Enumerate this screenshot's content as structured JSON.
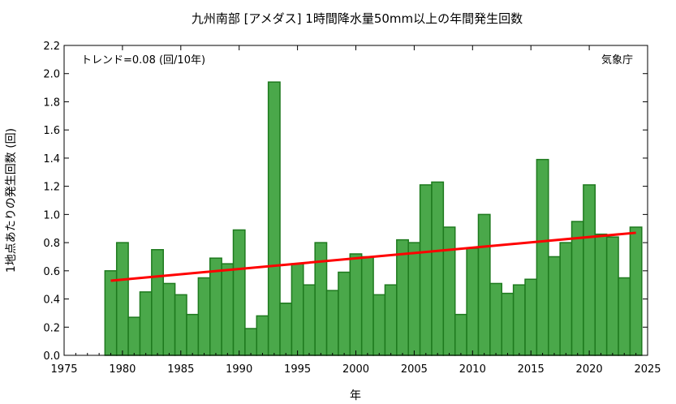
{
  "chart_data": {
    "type": "bar",
    "title": "九州南部 [アメダス] 1時間降水量50mm以上の年間発生回数",
    "xlabel": "年",
    "ylabel": "1地点あたりの発生回数 (回)",
    "trend_label": "トレンド=0.08 (回/10年)",
    "source_label": "気象庁",
    "xlim": [
      1975,
      2025
    ],
    "ylim": [
      0,
      2.2
    ],
    "x_ticks": [
      "1975",
      "1980",
      "1985",
      "1990",
      "1995",
      "2000",
      "2005",
      "2010",
      "2015",
      "2020",
      "2025"
    ],
    "y_ticks": [
      "0.0",
      "0.2",
      "0.4",
      "0.6",
      "0.8",
      "1.0",
      "1.2",
      "1.4",
      "1.6",
      "1.8",
      "2.0",
      "2.2"
    ],
    "grid": false,
    "years": [
      1979,
      1980,
      1981,
      1982,
      1983,
      1984,
      1985,
      1986,
      1987,
      1988,
      1989,
      1990,
      1991,
      1992,
      1993,
      1994,
      1995,
      1996,
      1997,
      1998,
      1999,
      2000,
      2001,
      2002,
      2003,
      2004,
      2005,
      2006,
      2007,
      2008,
      2009,
      2010,
      2011,
      2012,
      2013,
      2014,
      2015,
      2016,
      2017,
      2018,
      2019,
      2020,
      2021,
      2022,
      2023,
      2024
    ],
    "values": [
      0.6,
      0.8,
      0.27,
      0.45,
      0.75,
      0.51,
      0.43,
      0.29,
      0.55,
      0.69,
      0.65,
      0.89,
      0.19,
      0.28,
      1.94,
      0.37,
      0.65,
      0.5,
      0.8,
      0.46,
      0.59,
      0.72,
      0.7,
      0.43,
      0.5,
      0.82,
      0.8,
      1.21,
      1.23,
      0.91,
      0.29,
      0.76,
      1.0,
      0.51,
      0.44,
      0.5,
      0.54,
      1.39,
      0.7,
      0.8,
      0.95,
      1.21,
      0.86,
      0.84,
      0.55,
      0.91
    ],
    "trend": {
      "x": [
        1979,
        2024
      ],
      "y": [
        0.53,
        0.87
      ]
    },
    "colors": {
      "bar_fill": "#4aa84a",
      "bar_stroke": "#1e7a1e",
      "trend": "#ff0000"
    }
  }
}
